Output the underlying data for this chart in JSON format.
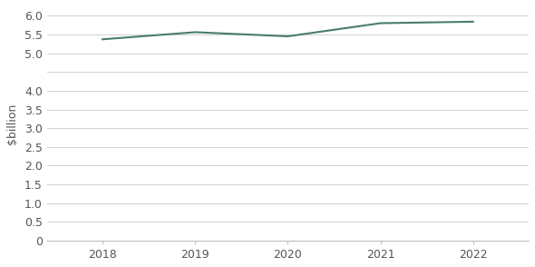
{
  "x": [
    2018,
    2019,
    2020,
    2021,
    2022
  ],
  "y": [
    5.37,
    5.56,
    5.45,
    5.8,
    5.84
  ],
  "line_color": "#4a7c6f",
  "line_width": 1.5,
  "ylabel": "$billion",
  "ylim": [
    0,
    6.25
  ],
  "yticks": [
    0,
    0.5,
    1.0,
    1.5,
    2.0,
    2.5,
    3.0,
    3.5,
    4.0,
    4.5,
    5.0,
    5.5,
    6.0
  ],
  "ytick_labels": [
    "0",
    "0.5",
    "1.0",
    "1.5",
    "2.0",
    "2.5",
    "3.0",
    "3.5",
    "4.0",
    "",
    "5.0",
    "5.5",
    "6.0"
  ],
  "xticks": [
    2018,
    2019,
    2020,
    2021,
    2022
  ],
  "xlim": [
    2017.4,
    2022.6
  ],
  "grid_color": "#d0d0d0",
  "background_color": "#ffffff",
  "figure_background": "#ffffff",
  "border_color": "#c0c0c0",
  "tick_label_fontsize": 9,
  "ylabel_fontsize": 9
}
